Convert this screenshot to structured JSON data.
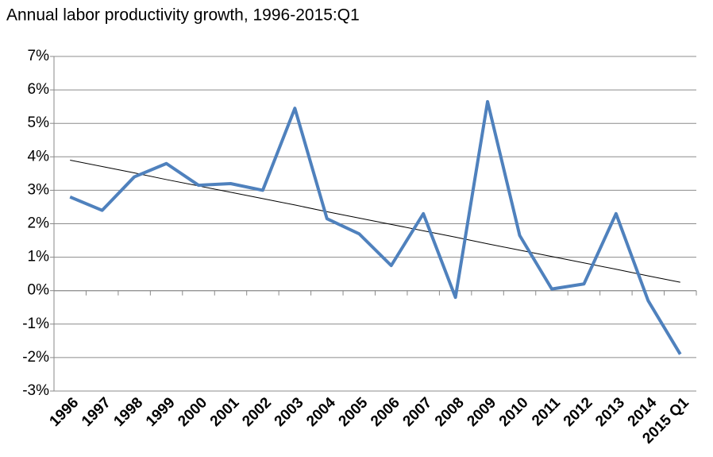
{
  "chart_data": {
    "type": "line",
    "title": "Annual labor productivity growth, 1996-2015:Q1",
    "categories": [
      "1996",
      "1997",
      "1998",
      "1999",
      "2000",
      "2001",
      "2002",
      "2003",
      "2004",
      "2005",
      "2006",
      "2007",
      "2008",
      "2009",
      "2010",
      "2011",
      "2012",
      "2013",
      "2014",
      "2015 Q1"
    ],
    "series": [
      {
        "color": "#4f81bd",
        "values": [
          2.8,
          2.4,
          3.4,
          3.8,
          3.15,
          3.2,
          3.0,
          5.45,
          2.15,
          1.7,
          0.75,
          2.3,
          -0.2,
          5.65,
          1.65,
          0.05,
          0.2,
          2.3,
          -0.3,
          -1.9
        ]
      },
      {
        "color": "#000000",
        "values": [
          3.9,
          3.71,
          3.52,
          3.32,
          3.13,
          2.94,
          2.75,
          2.56,
          2.36,
          2.17,
          1.98,
          1.79,
          1.6,
          1.4,
          1.21,
          1.02,
          0.83,
          0.64,
          0.44,
          0.25
        ]
      }
    ],
    "ylim": [
      -3,
      7
    ],
    "yticks": [
      {
        "value": -3,
        "label": "-3%"
      },
      {
        "value": -2,
        "label": "-2%"
      },
      {
        "value": -1,
        "label": "-1%"
      },
      {
        "value": 0,
        "label": "0%"
      },
      {
        "value": 1,
        "label": "1%"
      },
      {
        "value": 2,
        "label": "2%"
      },
      {
        "value": 3,
        "label": "3%"
      },
      {
        "value": 4,
        "label": "4%"
      },
      {
        "value": 5,
        "label": "5%"
      },
      {
        "value": 6,
        "label": "6%"
      },
      {
        "value": 7,
        "label": "7%"
      }
    ],
    "grid": true
  }
}
